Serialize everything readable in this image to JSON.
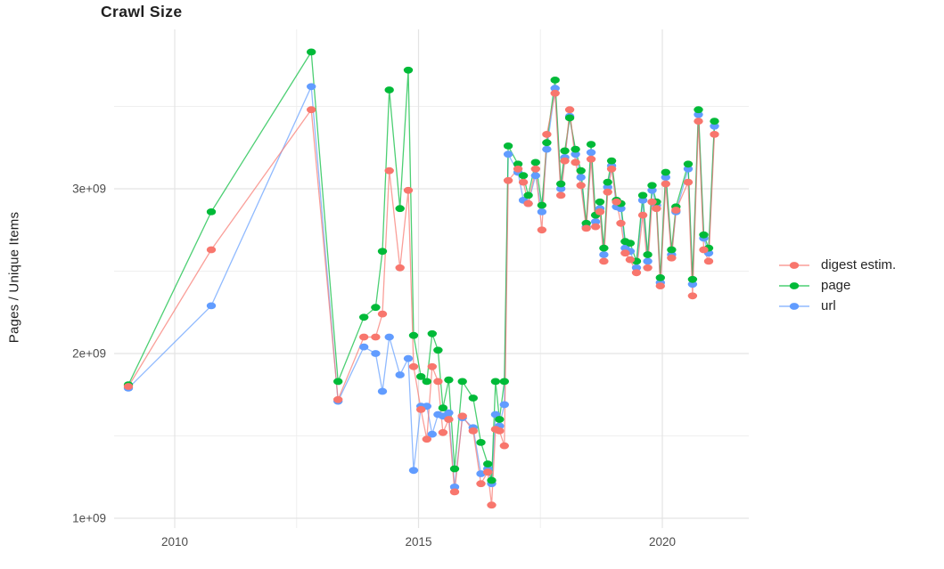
{
  "page": {
    "background": "#ffffff"
  },
  "chart_data": {
    "type": "line",
    "title": "Crawl Size",
    "xlabel": "",
    "ylabel": "Pages / Unique Items",
    "unit": "pages (value 1.0 = 1e+09)",
    "grid": true,
    "legend_position": "right",
    "xlim": [
      2008.76,
      2021.78
    ],
    "ylim": [
      0.94,
      3.97
    ],
    "x_ticks": [
      {
        "label": "2010",
        "value": 2010
      },
      {
        "label": "2015",
        "value": 2015
      },
      {
        "label": "2020",
        "value": 2020
      }
    ],
    "y_ticks": [
      {
        "label": "1e+09",
        "value": 1.0
      },
      {
        "label": "2e+09",
        "value": 2.0
      },
      {
        "label": "3e+09",
        "value": 3.0
      }
    ],
    "x_minor": [
      2012.5,
      2017.5
    ],
    "y_minor": [
      1.5,
      2.5,
      3.5
    ],
    "x": [
      2009.05,
      2010.75,
      2012.8,
      2013.35,
      2013.88,
      2014.12,
      2014.26,
      2014.4,
      2014.62,
      2014.79,
      2014.9,
      2015.05,
      2015.17,
      2015.28,
      2015.4,
      2015.5,
      2015.62,
      2015.74,
      2015.9,
      2016.12,
      2016.28,
      2016.42,
      2016.5,
      2016.58,
      2016.66,
      2016.76,
      2016.84,
      2017.04,
      2017.15,
      2017.25,
      2017.4,
      2017.53,
      2017.63,
      2017.8,
      2017.92,
      2018.0,
      2018.1,
      2018.22,
      2018.33,
      2018.44,
      2018.54,
      2018.63,
      2018.72,
      2018.8,
      2018.88,
      2018.96,
      2019.06,
      2019.15,
      2019.24,
      2019.34,
      2019.47,
      2019.6,
      2019.7,
      2019.79,
      2019.88,
      2019.96,
      2020.07,
      2020.19,
      2020.28,
      2020.53,
      2020.62,
      2020.74,
      2020.85,
      2020.95,
      2021.07
    ],
    "series": [
      {
        "name": "digest estim.",
        "color": "#F8766D",
        "values": [
          1.8,
          2.63,
          3.48,
          1.72,
          2.1,
          2.1,
          2.24,
          3.11,
          2.52,
          2.99,
          1.92,
          1.66,
          1.48,
          1.92,
          1.83,
          1.52,
          1.6,
          1.16,
          1.62,
          1.53,
          1.21,
          1.28,
          1.08,
          1.54,
          1.53,
          1.44,
          3.05,
          3.12,
          3.04,
          2.91,
          3.12,
          2.75,
          3.33,
          3.58,
          2.96,
          3.17,
          3.48,
          3.16,
          3.02,
          2.76,
          3.18,
          2.77,
          2.86,
          2.56,
          2.98,
          3.12,
          2.92,
          2.79,
          2.61,
          2.57,
          2.49,
          2.84,
          2.52,
          2.92,
          2.88,
          2.41,
          3.03,
          2.58,
          2.87,
          3.04,
          2.35,
          3.41,
          2.63,
          2.56,
          3.33
        ]
      },
      {
        "name": "page",
        "color": "#00BA38",
        "values": [
          1.81,
          2.86,
          3.83,
          1.83,
          2.22,
          2.28,
          2.62,
          3.6,
          2.88,
          3.72,
          2.11,
          1.86,
          1.83,
          2.12,
          2.02,
          1.67,
          1.84,
          1.3,
          1.83,
          1.73,
          1.46,
          1.33,
          1.23,
          1.83,
          1.6,
          1.83,
          3.26,
          3.15,
          3.08,
          2.96,
          3.16,
          2.9,
          3.28,
          3.66,
          3.03,
          3.23,
          3.43,
          3.24,
          3.11,
          2.79,
          3.27,
          2.84,
          2.92,
          2.64,
          3.04,
          3.17,
          2.93,
          2.91,
          2.68,
          2.67,
          2.56,
          2.96,
          2.6,
          3.02,
          2.92,
          2.46,
          3.1,
          2.63,
          2.89,
          3.15,
          2.45,
          3.48,
          2.72,
          2.64,
          3.41
        ]
      },
      {
        "name": "url",
        "color": "#619CFF",
        "values": [
          1.79,
          2.29,
          3.62,
          1.71,
          2.04,
          2.0,
          1.77,
          2.1,
          1.87,
          1.97,
          1.29,
          1.68,
          1.68,
          1.51,
          1.63,
          1.62,
          1.64,
          1.19,
          1.61,
          1.55,
          1.27,
          1.3,
          1.21,
          1.63,
          1.56,
          1.69,
          3.21,
          3.1,
          2.93,
          2.91,
          3.08,
          2.86,
          3.24,
          3.61,
          3.0,
          3.19,
          3.44,
          3.21,
          3.07,
          2.77,
          3.22,
          2.8,
          2.88,
          2.6,
          3.01,
          3.14,
          2.89,
          2.88,
          2.64,
          2.62,
          2.52,
          2.93,
          2.56,
          2.99,
          2.9,
          2.43,
          3.07,
          2.6,
          2.86,
          3.12,
          2.42,
          3.45,
          2.7,
          2.61,
          3.38
        ]
      }
    ],
    "style": {
      "grid_major_color": "#E4E4E4",
      "grid_minor_color": "#EFEFEF",
      "tick_label_color": "#4D4D4D",
      "line_opacity": 0.7,
      "draw_order_note": "points drawn url, page, digest (digest topmost)"
    }
  }
}
